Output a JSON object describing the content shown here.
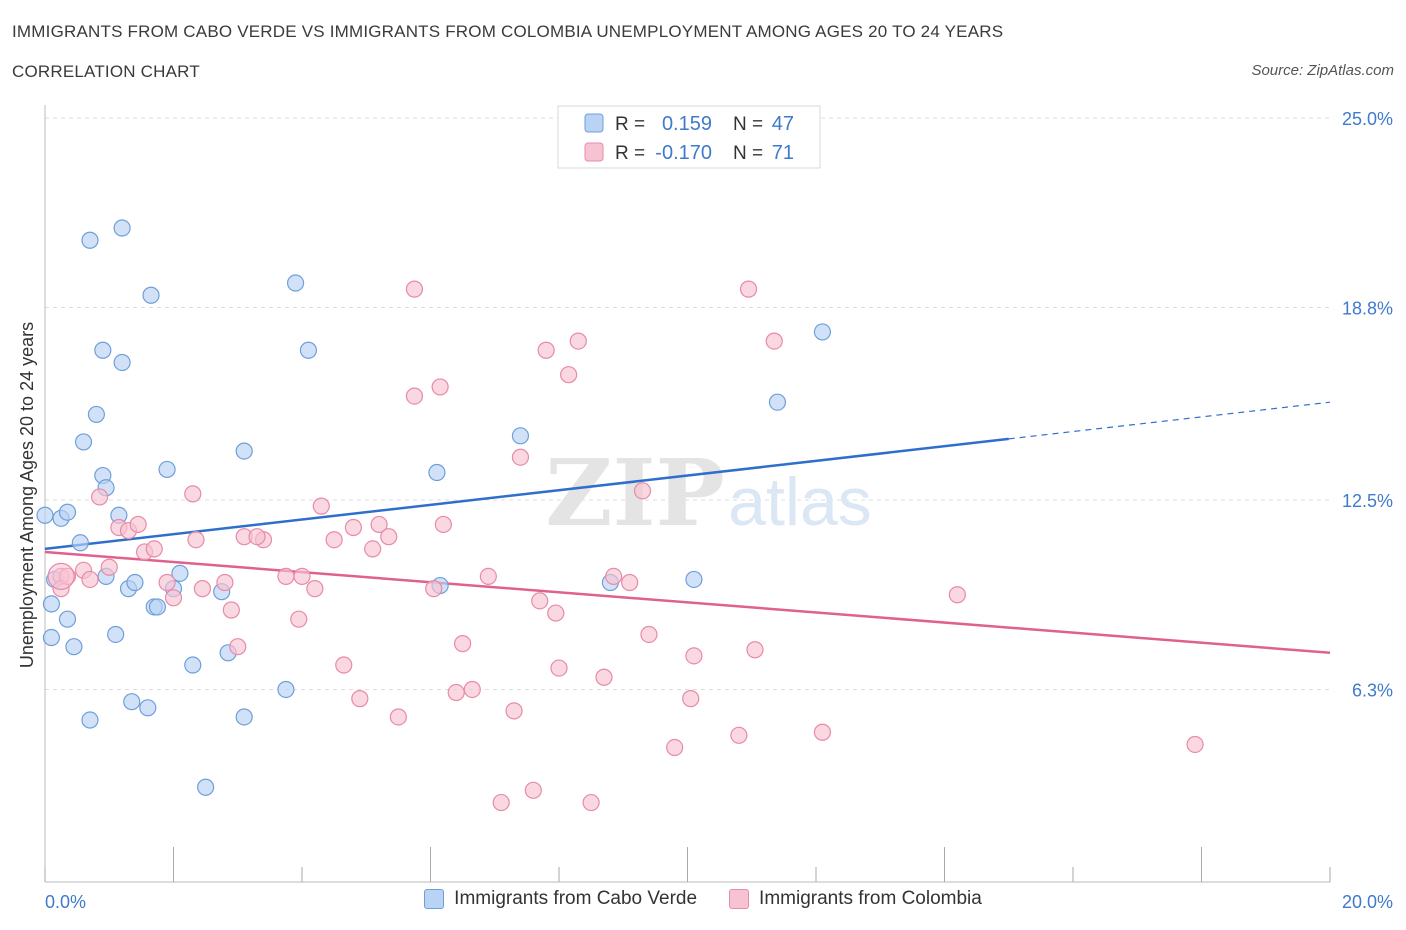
{
  "header": {
    "title": "IMMIGRANTS FROM CABO VERDE VS IMMIGRANTS FROM COLOMBIA UNEMPLOYMENT AMONG AGES 20 TO 24 YEARS",
    "subtitle": "CORRELATION CHART",
    "source": "Source: ZipAtlas.com"
  },
  "watermark": {
    "zip": "ZIP",
    "atlas": "atlas"
  },
  "legend_box": {
    "rows": [
      {
        "r_label": "R =",
        "r_value": "0.159",
        "n_label": "N =",
        "n_value": "47"
      },
      {
        "r_label": "R =",
        "r_value": "-0.170",
        "n_label": "N =",
        "n_value": "71"
      }
    ]
  },
  "colors": {
    "blue_fill": "#b9d3f5",
    "blue_stroke": "#6f9fd8",
    "blue_line": "#2f6fcc",
    "pink_fill": "#f7c3d3",
    "pink_stroke": "#e88aa8",
    "pink_line": "#e0608e",
    "tick_label": "#3f7acc",
    "grid": "#dddddd"
  },
  "chart_data": {
    "type": "scatter",
    "title": "IMMIGRANTS FROM CABO VERDE VS IMMIGRANTS FROM COLOMBIA UNEMPLOYMENT AMONG AGES 20 TO 24 YEARS",
    "xlabel": "",
    "ylabel": "Unemployment Among Ages 20 to 24 years",
    "xlim": [
      0,
      20
    ],
    "ylim": [
      0,
      25
    ],
    "x_tick_labels": [
      "0.0%",
      "20.0%"
    ],
    "y_ticks": [
      6.3,
      12.5,
      18.8,
      25.0
    ],
    "y_tick_labels": [
      "6.3%",
      "12.5%",
      "18.8%",
      "25.0%"
    ],
    "series": [
      {
        "name": "Immigrants from Cabo Verde",
        "color": "#6f9fd8",
        "trend": {
          "x": [
            0,
            15
          ],
          "y": [
            10.9,
            14.5
          ],
          "dashed_to": [
            20,
            15.7
          ]
        },
        "points": [
          [
            0.0,
            12.0
          ],
          [
            0.15,
            9.9
          ],
          [
            0.25,
            11.9
          ],
          [
            0.35,
            12.1
          ],
          [
            0.1,
            9.1
          ],
          [
            0.35,
            8.6
          ],
          [
            0.1,
            8.0
          ],
          [
            0.45,
            7.7
          ],
          [
            0.55,
            11.1
          ],
          [
            0.6,
            14.4
          ],
          [
            0.7,
            21.0
          ],
          [
            0.8,
            15.3
          ],
          [
            0.9,
            17.4
          ],
          [
            0.9,
            13.3
          ],
          [
            0.95,
            12.9
          ],
          [
            0.95,
            10.0
          ],
          [
            1.1,
            8.1
          ],
          [
            1.15,
            12.0
          ],
          [
            1.2,
            17.0
          ],
          [
            1.2,
            21.4
          ],
          [
            1.3,
            9.6
          ],
          [
            1.4,
            9.8
          ],
          [
            1.35,
            5.9
          ],
          [
            1.6,
            5.7
          ],
          [
            1.65,
            19.2
          ],
          [
            1.7,
            9.0
          ],
          [
            1.9,
            13.5
          ],
          [
            2.0,
            9.6
          ],
          [
            2.1,
            10.1
          ],
          [
            2.3,
            7.1
          ],
          [
            2.5,
            3.1
          ],
          [
            2.75,
            9.5
          ],
          [
            2.85,
            7.5
          ],
          [
            3.1,
            14.1
          ],
          [
            3.1,
            5.4
          ],
          [
            3.75,
            6.3
          ],
          [
            3.9,
            19.6
          ],
          [
            4.1,
            17.4
          ],
          [
            6.1,
            13.4
          ],
          [
            6.15,
            9.7
          ],
          [
            7.4,
            14.6
          ],
          [
            8.8,
            9.8
          ],
          [
            10.1,
            9.9
          ],
          [
            11.4,
            15.7
          ],
          [
            12.1,
            18.0
          ],
          [
            0.7,
            5.3
          ],
          [
            1.75,
            9.0
          ]
        ]
      },
      {
        "name": "Immigrants from Colombia",
        "color": "#e88aa8",
        "trend": {
          "x": [
            0,
            20
          ],
          "y": [
            10.8,
            7.5
          ]
        },
        "points": [
          [
            0.25,
            10.0
          ],
          [
            0.25,
            9.6
          ],
          [
            0.35,
            10.0
          ],
          [
            0.6,
            10.2
          ],
          [
            0.7,
            9.9
          ],
          [
            0.85,
            12.6
          ],
          [
            1.0,
            10.3
          ],
          [
            1.15,
            11.6
          ],
          [
            1.3,
            11.5
          ],
          [
            1.45,
            11.7
          ],
          [
            1.55,
            10.8
          ],
          [
            1.7,
            10.9
          ],
          [
            1.9,
            9.8
          ],
          [
            2.0,
            9.3
          ],
          [
            2.3,
            12.7
          ],
          [
            2.35,
            11.2
          ],
          [
            2.45,
            9.6
          ],
          [
            2.8,
            9.8
          ],
          [
            2.9,
            8.9
          ],
          [
            3.0,
            7.7
          ],
          [
            3.1,
            11.3
          ],
          [
            3.4,
            11.2
          ],
          [
            3.75,
            10.0
          ],
          [
            3.95,
            8.6
          ],
          [
            4.2,
            9.6
          ],
          [
            4.3,
            12.3
          ],
          [
            4.5,
            11.2
          ],
          [
            4.65,
            7.1
          ],
          [
            4.8,
            11.6
          ],
          [
            4.9,
            6.0
          ],
          [
            5.1,
            10.9
          ],
          [
            5.2,
            11.7
          ],
          [
            5.35,
            11.3
          ],
          [
            5.5,
            5.4
          ],
          [
            5.75,
            19.4
          ],
          [
            5.75,
            15.9
          ],
          [
            6.05,
            9.6
          ],
          [
            6.15,
            16.2
          ],
          [
            6.2,
            11.7
          ],
          [
            6.4,
            6.2
          ],
          [
            6.5,
            7.8
          ],
          [
            6.65,
            6.3
          ],
          [
            6.9,
            10.0
          ],
          [
            7.1,
            2.6
          ],
          [
            7.3,
            5.6
          ],
          [
            7.4,
            13.9
          ],
          [
            7.6,
            3.0
          ],
          [
            7.7,
            9.2
          ],
          [
            7.8,
            17.4
          ],
          [
            7.95,
            8.8
          ],
          [
            8.0,
            7.0
          ],
          [
            8.15,
            16.6
          ],
          [
            8.3,
            17.7
          ],
          [
            8.5,
            2.6
          ],
          [
            8.7,
            6.7
          ],
          [
            8.85,
            10.0
          ],
          [
            9.1,
            9.8
          ],
          [
            9.3,
            12.8
          ],
          [
            9.4,
            8.1
          ],
          [
            9.8,
            4.4
          ],
          [
            10.05,
            6.0
          ],
          [
            10.1,
            7.4
          ],
          [
            10.8,
            4.8
          ],
          [
            10.95,
            19.4
          ],
          [
            11.05,
            7.6
          ],
          [
            11.35,
            17.7
          ],
          [
            12.1,
            4.9
          ],
          [
            14.2,
            9.4
          ],
          [
            17.9,
            4.5
          ],
          [
            4.0,
            10.0
          ],
          [
            3.3,
            11.3
          ]
        ]
      }
    ]
  },
  "legend_bottom": {
    "items": [
      {
        "label": "Immigrants from Cabo Verde"
      },
      {
        "label": "Immigrants from Colombia"
      }
    ]
  }
}
